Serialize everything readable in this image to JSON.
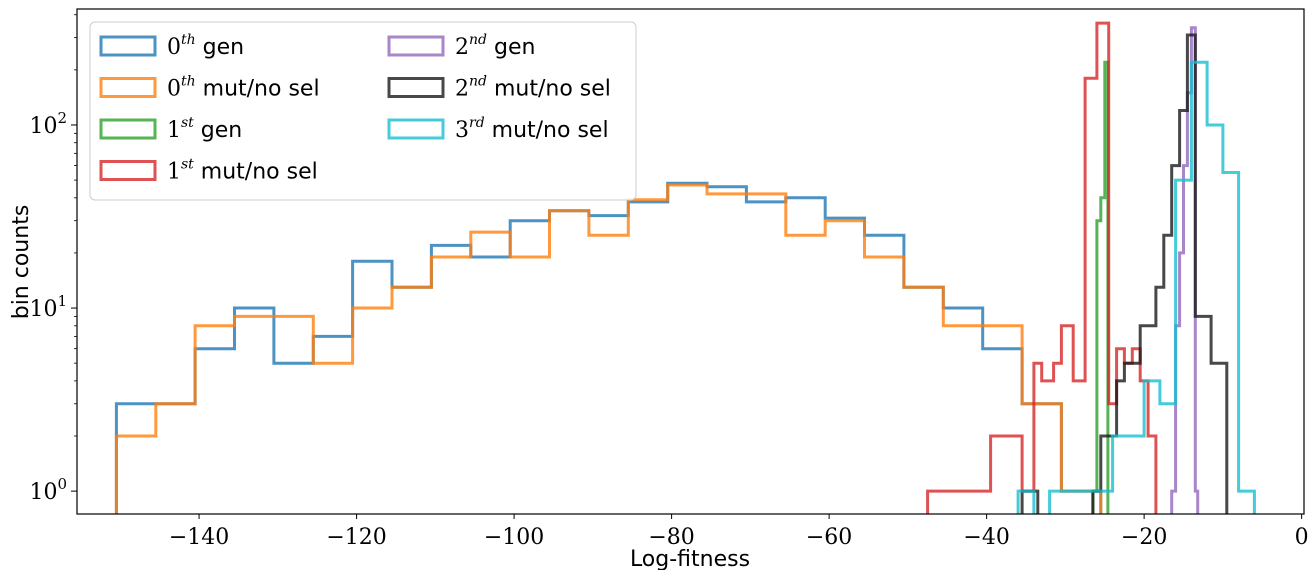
{
  "chart_data": {
    "type": "histogram",
    "xlabel": "Log-fitness",
    "ylabel": "bin counts",
    "xlim": [
      -155.5,
      0.3
    ],
    "ylim": [
      0.75,
      430
    ],
    "yscale": "log",
    "x_ticks": [
      -140,
      -120,
      -100,
      -80,
      -60,
      -40,
      -20,
      0
    ],
    "x_tick_labels": [
      "−140",
      "−120",
      "−100",
      "−80",
      "−60",
      "−40",
      "−20",
      "0"
    ],
    "y_ticks": [
      1,
      10,
      100
    ],
    "y_tick_bases": [
      "10",
      "10",
      "10"
    ],
    "y_tick_exps": [
      "0",
      "1",
      "2"
    ],
    "grid": false,
    "legend_position": "upper-left",
    "series": [
      {
        "legend_base": "0",
        "legend_sup": "th",
        "legend_rest": " gen",
        "color": "#1f77b4",
        "edges": [
          -150.5,
          -145.5,
          -140.5,
          -135.5,
          -130.5,
          -125.5,
          -120.5,
          -115.5,
          -110.5,
          -105.5,
          -100.5,
          -95.5,
          -90.5,
          -85.5,
          -80.5,
          -75.5,
          -70.5,
          -65.5,
          -60.5,
          -55.5,
          -50.5,
          -45.5,
          -40.5,
          -35.5,
          -30.5,
          -25.5
        ],
        "counts": [
          3,
          3,
          6,
          10,
          5,
          7,
          18,
          13,
          22,
          19,
          30,
          34,
          32,
          38,
          48,
          46,
          38,
          40,
          31,
          25,
          13,
          10,
          6,
          3,
          1
        ]
      },
      {
        "legend_base": "0",
        "legend_sup": "th",
        "legend_rest": " mut/no sel",
        "color": "#ff7f0e",
        "edges": [
          -150.5,
          -145.5,
          -140.5,
          -135.5,
          -130.5,
          -125.5,
          -120.5,
          -115.5,
          -110.5,
          -105.5,
          -100.5,
          -95.5,
          -90.5,
          -85.5,
          -80.5,
          -75.5,
          -70.5,
          -65.5,
          -60.5,
          -55.5,
          -50.5,
          -45.5,
          -40.5,
          -35.5,
          -30.5,
          -25.5
        ],
        "counts": [
          2,
          3,
          8,
          9,
          9,
          5,
          10,
          13,
          19,
          26,
          19,
          34,
          25,
          39,
          47,
          42,
          42,
          25,
          30,
          19,
          13,
          8,
          8,
          3,
          1
        ]
      },
      {
        "legend_base": "1",
        "legend_sup": "st",
        "legend_rest": " gen",
        "color": "#2ca02c",
        "edges": [
          -26.5,
          -26.0,
          -25.5,
          -25.0,
          -24.6
        ],
        "counts": [
          1,
          30,
          40,
          220
        ]
      },
      {
        "legend_base": "1",
        "legend_sup": "st",
        "legend_rest": " mut/no sel",
        "color": "#d62728",
        "edges": [
          -47.5,
          -39.5,
          -35.5,
          -34.0,
          -33.0,
          -31.5,
          -30.5,
          -29.0,
          -27.5,
          -26.0,
          -24.5,
          -23.5,
          -22.5,
          -21.5,
          -20.5,
          -19.5,
          -18.5
        ],
        "counts": [
          1,
          2,
          1,
          5,
          4,
          5,
          8,
          4,
          180,
          360,
          3,
          6,
          5,
          6,
          4,
          2
        ]
      },
      {
        "legend_base": "2",
        "legend_sup": "nd",
        "legend_rest": " gen",
        "color": "#9467bd",
        "edges": [
          -16.5,
          -16.0,
          -15.5,
          -15.0,
          -14.5,
          -14.0,
          -13.5,
          -13.2
        ],
        "counts": [
          1,
          8,
          20,
          60,
          150,
          340,
          1
        ]
      },
      {
        "legend_base": "2",
        "legend_sup": "nd",
        "legend_rest": " mut/no sel",
        "color": "#1a1a1a",
        "edges": [
          -35.5,
          -33.5,
          -26.5,
          -25.5,
          -23.5,
          -22.5,
          -21.5,
          -20.5,
          -19.5,
          -18.5,
          -17.5,
          -16.5,
          -15.5,
          -14.5,
          -13.5,
          -11.5,
          -9.5
        ],
        "counts": [
          1,
          0,
          1,
          2,
          4,
          5,
          5,
          8,
          8,
          13,
          25,
          60,
          120,
          310,
          9,
          5
        ]
      },
      {
        "legend_base": "3",
        "legend_sup": "rd",
        "legend_rest": " mut/no sel",
        "color": "#17becf",
        "edges": [
          -36.0,
          -34.0,
          -32.0,
          -30.0,
          -28.0,
          -26.0,
          -24.0,
          -22.0,
          -20.0,
          -18.0,
          -16.0,
          -14.0,
          -12.0,
          -10.0,
          -8.0,
          -6.0
        ],
        "counts": [
          1,
          0,
          1,
          1,
          1,
          1,
          2,
          2,
          4,
          3,
          50,
          220,
          100,
          55,
          1
        ]
      }
    ]
  }
}
